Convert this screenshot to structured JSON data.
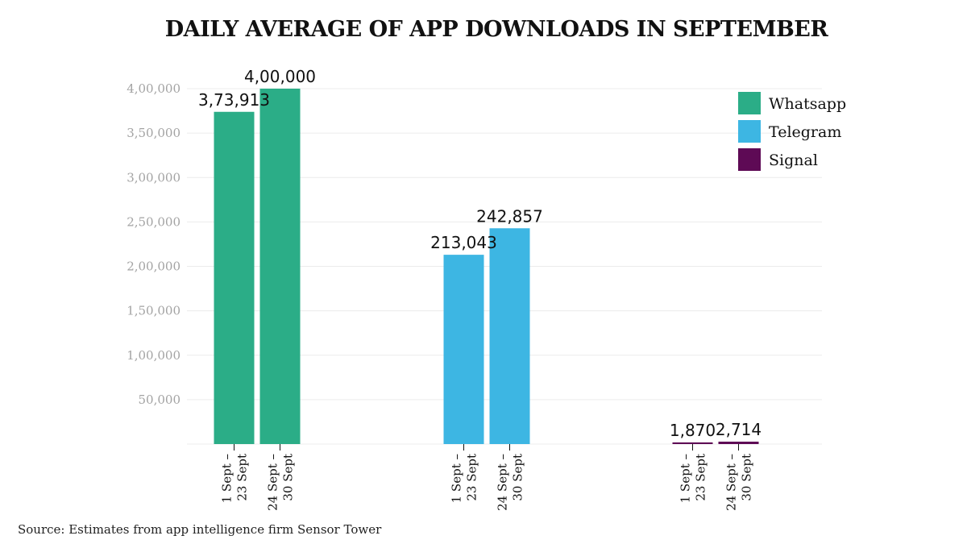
{
  "chart_data": {
    "type": "bar",
    "title": "DAILY AVERAGE OF APP DOWNLOADS IN SEPTEMBER",
    "groups": [
      "Whatsapp",
      "Telegram",
      "Signal"
    ],
    "categories": [
      "1 Sept –\n23 Sept",
      "24 Sept –\n30 Sept"
    ],
    "series": [
      {
        "name": "Whatsapp",
        "color": "#2bad87",
        "values": [
          373913,
          400000
        ],
        "labels": [
          "3,73,913",
          "4,00,000"
        ]
      },
      {
        "name": "Telegram",
        "color": "#3db6e3",
        "values": [
          213043,
          242857
        ],
        "labels": [
          "213,043",
          "242,857"
        ]
      },
      {
        "name": "Signal",
        "color": "#5e0a55",
        "values": [
          1870,
          2714
        ],
        "labels": [
          "1,870",
          "2,714"
        ]
      }
    ],
    "y_ticks": [
      {
        "value": 50000,
        "label": "50,000"
      },
      {
        "value": 100000,
        "label": "1,00,000"
      },
      {
        "value": 150000,
        "label": "1,50,000"
      },
      {
        "value": 200000,
        "label": "2,00,000"
      },
      {
        "value": 250000,
        "label": "2,50,000"
      },
      {
        "value": 300000,
        "label": "3,00,000"
      },
      {
        "value": 350000,
        "label": "3,50,000"
      },
      {
        "value": 400000,
        "label": "4,00,000"
      }
    ],
    "ylim": [
      0,
      400000
    ],
    "grid": true,
    "legend_position": "top-right",
    "xlabel": "",
    "ylabel": ""
  },
  "source": "Source: Estimates from app intelligence firm Sensor Tower"
}
